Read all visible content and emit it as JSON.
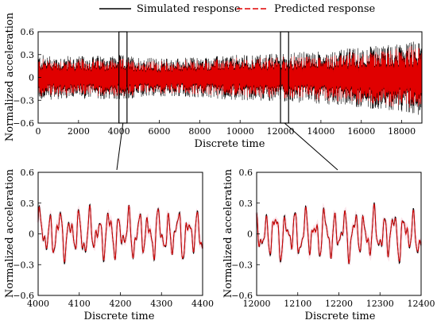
{
  "legend": {
    "simulated": "Simulated response",
    "predicted": "Predicted response"
  },
  "colors": {
    "simulated": "#000000",
    "predicted": "#e00000",
    "axis": "#000000"
  },
  "chart_data": [
    {
      "id": "top",
      "type": "line",
      "xlabel": "Discrete time",
      "ylabel": "Normalized acceleration",
      "xlim": [
        0,
        19000
      ],
      "ylim": [
        -0.6,
        0.6
      ],
      "xticks": [
        0,
        2000,
        4000,
        6000,
        8000,
        10000,
        12000,
        14000,
        16000,
        18000
      ],
      "yticks": [
        -0.6,
        -0.3,
        0,
        0.3,
        0.6
      ],
      "highlight_windows": [
        [
          4000,
          4400
        ],
        [
          12000,
          12400
        ]
      ],
      "series": [
        {
          "name": "Simulated response",
          "envelope_note_values": {
            "x": [
              0,
              2000,
              4000,
              6000,
              8000,
              10000,
              12000,
              14000,
              16000,
              18000,
              19000
            ],
            "amplitude": [
              0.3,
              0.28,
              0.3,
              0.25,
              0.27,
              0.3,
              0.32,
              0.35,
              0.4,
              0.45,
              0.5
            ]
          }
        },
        {
          "name": "Predicted response"
        }
      ]
    },
    {
      "id": "zoom1",
      "type": "line",
      "xlabel": "Discrete time",
      "ylabel": "Normalized acceleration",
      "xlim": [
        4000,
        4400
      ],
      "ylim": [
        -0.6,
        0.6
      ],
      "xticks": [
        4000,
        4100,
        4200,
        4300,
        4400
      ],
      "yticks": [
        -0.6,
        -0.3,
        0,
        0.3,
        0.6
      ],
      "series": [
        {
          "name": "Simulated response"
        },
        {
          "name": "Predicted response"
        }
      ]
    },
    {
      "id": "zoom2",
      "type": "line",
      "xlabel": "Discrete time",
      "ylabel": "Normalized acceleration",
      "xlim": [
        12000,
        12400
      ],
      "ylim": [
        -0.6,
        0.6
      ],
      "xticks": [
        12000,
        12100,
        12200,
        12300,
        12400
      ],
      "yticks": [
        -0.6,
        -0.3,
        0,
        0.3,
        0.6
      ],
      "series": [
        {
          "name": "Simulated response"
        },
        {
          "name": "Predicted response"
        }
      ]
    }
  ]
}
